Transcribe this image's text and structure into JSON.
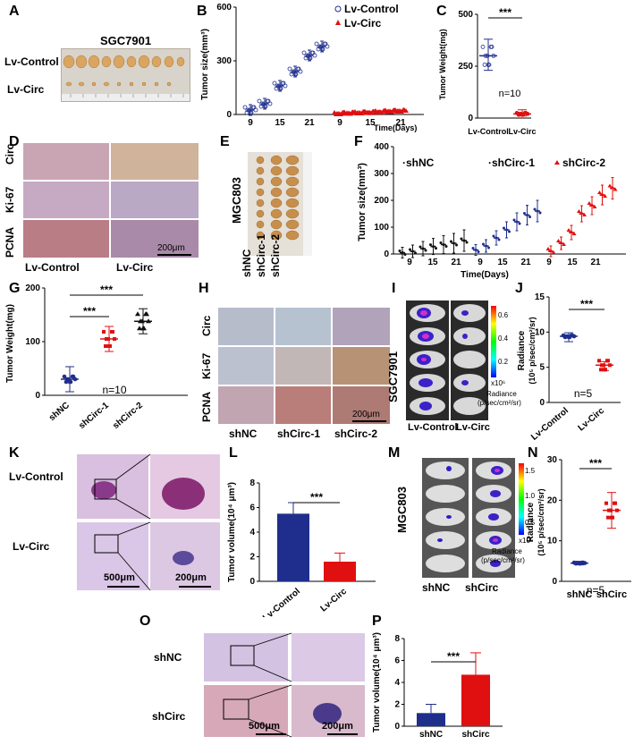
{
  "letters": [
    "A",
    "B",
    "C",
    "D",
    "E",
    "F",
    "G",
    "H",
    "I",
    "J",
    "K",
    "L",
    "M",
    "N",
    "O",
    "P"
  ],
  "A": {
    "title": "SGC7901",
    "row1": "Lv-Control",
    "row2": "Lv-Circ"
  },
  "D": {
    "rows": [
      "Circ",
      "Ki-67",
      "PCNA"
    ],
    "cols": [
      "Lv-Control",
      "Lv-Circ"
    ],
    "scale": "200μm"
  },
  "E": {
    "label": "MGC803",
    "groups": [
      "shNC",
      "shCirc-1",
      "shCirc-2"
    ]
  },
  "H": {
    "rows": [
      "Circ",
      "Ki-67",
      "PCNA"
    ],
    "cols": [
      "shNC",
      "shCirc-1",
      "shCirc-2"
    ],
    "scale": "200μm"
  },
  "I": {
    "label": "SGC7901",
    "groups": [
      "Lv-Control",
      "Lv-Circ"
    ],
    "cbar_ticks": [
      "0.6",
      "0.4",
      "0.2"
    ],
    "cbar_unit": "x10⁶",
    "cbar_title1": "Radiance",
    "cbar_title2": "(p/sec/cm²/sr)"
  },
  "K": {
    "rows": [
      "Lv-Control",
      "Lv-Circ"
    ],
    "scale1": "500μm",
    "scale2": "200μm"
  },
  "M": {
    "label": "MGC803",
    "groups": [
      "shNC",
      "shCirc"
    ],
    "cbar_ticks": [
      "1.5",
      "1.0",
      "0.5"
    ],
    "cbar_unit": "x10⁵",
    "cbar_title1": "Radiance",
    "cbar_title2": "(p/sec/cm²/sr)"
  },
  "O": {
    "rows": [
      "shNC",
      "shCirc"
    ],
    "scale1": "500μm",
    "scale2": "200μm"
  },
  "colors": {
    "blue": "#1f2e8c",
    "red": "#e01010",
    "dark": "#101010"
  },
  "chart_data": [
    {
      "id": "B",
      "type": "scatter",
      "ylabel": "Tumor size(mm³)",
      "xlabel": "Time(Days)",
      "ylim": [
        0,
        600
      ],
      "yticks": [
        "0",
        "300",
        "600"
      ],
      "xticks_ctrl": [
        "9",
        "15",
        "21"
      ],
      "xticks_circ": [
        "9",
        "15",
        "21"
      ],
      "series": [
        {
          "name": "Lv-Control",
          "x": [
            9,
            12,
            15,
            18,
            21,
            23
          ],
          "values": [
            25,
            60,
            160,
            240,
            330,
            380
          ]
        },
        {
          "name": "Lv-Circ",
          "x": [
            9,
            11,
            13,
            15,
            17,
            19,
            21
          ],
          "values": [
            5,
            8,
            10,
            12,
            15,
            18,
            20
          ]
        }
      ]
    },
    {
      "id": "C",
      "type": "scatter",
      "ylabel": "Tumor Weight(mg)",
      "ylim": [
        0,
        500
      ],
      "yticks": [
        "0",
        "250",
        "500"
      ],
      "categories": [
        "Lv-Control",
        "Lv-Circ"
      ],
      "values": [
        300,
        20
      ],
      "annotation": "n=10",
      "signif": "***"
    },
    {
      "id": "F",
      "type": "scatter",
      "ylabel": "Tumor size(mm³)",
      "xlabel": "Time(Days)",
      "ylim": [
        0,
        400
      ],
      "yticks": [
        "0",
        "100",
        "200",
        "300",
        "400"
      ],
      "xticks": [
        "9",
        "15",
        "21",
        "9",
        "15",
        "21",
        "9",
        "15",
        "21"
      ],
      "series": [
        {
          "name": "shNC",
          "values": [
            5,
            10,
            20,
            28,
            35,
            40,
            50
          ]
        },
        {
          "name": "shCirc-1",
          "values": [
            15,
            30,
            60,
            90,
            120,
            145,
            160
          ]
        },
        {
          "name": "shCirc-2",
          "values": [
            10,
            40,
            80,
            150,
            180,
            220,
            245
          ]
        }
      ]
    },
    {
      "id": "G",
      "type": "scatter",
      "ylabel": "Tumor Weight(mg)",
      "ylim": [
        0,
        200
      ],
      "yticks": [
        "0",
        "100",
        "200"
      ],
      "categories": [
        "shNC",
        "shCirc-1",
        "shCirc-2"
      ],
      "values": [
        30,
        105,
        138
      ],
      "annotation": "n=10",
      "signif": [
        "***",
        "***"
      ]
    },
    {
      "id": "J",
      "type": "scatter",
      "ylabel": "Radiance",
      "ylabel2": "(10⁵ p/sec/cm²/sr)",
      "ylim": [
        0,
        15
      ],
      "yticks": [
        "0",
        "5",
        "10",
        "15"
      ],
      "categories": [
        "Lv-Control",
        "Lv-Circ"
      ],
      "values": [
        9.4,
        5.3
      ],
      "annotation": "n=5",
      "signif": "***"
    },
    {
      "id": "L",
      "type": "bar",
      "ylabel": "Tumor volume(10⁴ μm³)",
      "ylim": [
        0,
        8
      ],
      "yticks": [
        "0",
        "2",
        "4",
        "6",
        "8"
      ],
      "categories": [
        "Lv-Control",
        "Lv-Circ"
      ],
      "values": [
        5.5,
        1.6
      ],
      "errors": [
        0.9,
        0.7
      ],
      "signif": "***"
    },
    {
      "id": "N",
      "type": "scatter",
      "ylabel": "Radiance",
      "ylabel2": "(10⁵ p/sec/cm²/sr)",
      "ylim": [
        0,
        30
      ],
      "yticks": [
        "0",
        "10",
        "20",
        "30"
      ],
      "categories": [
        "shNC",
        "shCirc"
      ],
      "values": [
        4.5,
        17.5
      ],
      "annotation": "n=5",
      "signif": "***"
    },
    {
      "id": "P",
      "type": "bar",
      "ylabel": "Tumor volume(10⁴ μm³)",
      "ylim": [
        0,
        8
      ],
      "yticks": [
        "0",
        "2",
        "4",
        "6",
        "8"
      ],
      "categories": [
        "shNC",
        "shCirc"
      ],
      "values": [
        1.2,
        4.7
      ],
      "errors": [
        0.8,
        2.0
      ],
      "signif": "***"
    }
  ]
}
